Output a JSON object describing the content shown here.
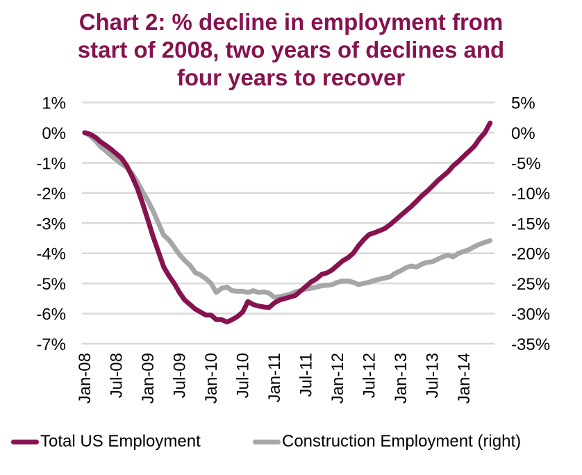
{
  "chart_data": {
    "type": "line",
    "title_lines": [
      "Chart 2: % decline in employment from",
      "start of 2008, two years of declines and",
      "four years to recover"
    ],
    "title": "Chart 2: % decline in employment from start of 2008, two years of declines and four years to recover",
    "x_start": "Jan-08",
    "x_end": "Jun-14",
    "x_frequency": "monthly",
    "x_tick_labels": [
      "Jan-08",
      "Jul-08",
      "Jan-09",
      "Jul-09",
      "Jan-10",
      "Jul-10",
      "Jan-11",
      "Jul-11",
      "Jan-12",
      "Jul-12",
      "Jan-13",
      "Jul-13",
      "Jan-14"
    ],
    "x_tick_every_months": 6,
    "left_axis": {
      "ylim": [
        -7,
        1
      ],
      "ticks": [
        1,
        0,
        -1,
        -2,
        -3,
        -4,
        -5,
        -6,
        -7
      ],
      "tick_labels": [
        "1%",
        "0%",
        "-1%",
        "-2%",
        "-3%",
        "-4%",
        "-5%",
        "-6%",
        "-7%"
      ]
    },
    "right_axis": {
      "ylim": [
        -35,
        5
      ],
      "ticks": [
        5,
        0,
        -5,
        -10,
        -15,
        -20,
        -25,
        -30,
        -35
      ],
      "tick_labels": [
        "5%",
        "0%",
        "-5%",
        "-10%",
        "-15%",
        "-20%",
        "-25%",
        "-30%",
        "-35%"
      ]
    },
    "grid": true,
    "legend_position": "bottom",
    "series": [
      {
        "name": "Total US Employment",
        "axis": "left",
        "color": "#86134F",
        "values": [
          0,
          -0.05,
          -0.15,
          -0.3,
          -0.42,
          -0.55,
          -0.7,
          -0.85,
          -1.1,
          -1.45,
          -1.85,
          -2.35,
          -2.9,
          -3.45,
          -3.95,
          -4.45,
          -4.75,
          -5.0,
          -5.3,
          -5.55,
          -5.7,
          -5.85,
          -5.95,
          -6.05,
          -6.05,
          -6.2,
          -6.2,
          -6.28,
          -6.2,
          -6.1,
          -5.95,
          -5.6,
          -5.7,
          -5.75,
          -5.78,
          -5.8,
          -5.65,
          -5.55,
          -5.5,
          -5.45,
          -5.4,
          -5.25,
          -5.1,
          -4.95,
          -4.85,
          -4.7,
          -4.65,
          -4.55,
          -4.4,
          -4.25,
          -4.15,
          -4.0,
          -3.75,
          -3.55,
          -3.38,
          -3.32,
          -3.25,
          -3.18,
          -3.05,
          -2.9,
          -2.75,
          -2.6,
          -2.45,
          -2.28,
          -2.1,
          -1.95,
          -1.78,
          -1.6,
          -1.45,
          -1.3,
          -1.1,
          -0.95,
          -0.78,
          -0.62,
          -0.45,
          -0.2,
          0.0,
          0.32
        ]
      },
      {
        "name": "Construction Employment (right)",
        "axis": "right",
        "color": "#A6A6A6",
        "values": [
          0,
          -0.5,
          -1.3,
          -2.3,
          -3.0,
          -3.8,
          -4.5,
          -5.2,
          -5.8,
          -6.8,
          -8.2,
          -9.8,
          -11.3,
          -13.0,
          -15.0,
          -17.0,
          -17.8,
          -19.0,
          -20.2,
          -21.2,
          -22.0,
          -23.2,
          -23.6,
          -24.2,
          -25.0,
          -26.5,
          -25.8,
          -25.6,
          -26.2,
          -26.3,
          -26.3,
          -26.5,
          -26.2,
          -26.5,
          -26.4,
          -26.6,
          -27.3,
          -27.2,
          -27.0,
          -26.8,
          -26.4,
          -26.2,
          -25.9,
          -25.8,
          -25.6,
          -25.4,
          -25.3,
          -25.2,
          -24.8,
          -24.6,
          -24.6,
          -24.8,
          -25.2,
          -25.0,
          -24.8,
          -24.5,
          -24.3,
          -24.1,
          -23.9,
          -23.3,
          -22.9,
          -22.4,
          -22.1,
          -22.3,
          -21.8,
          -21.5,
          -21.4,
          -21.0,
          -20.6,
          -20.3,
          -20.6,
          -20.0,
          -19.7,
          -19.4,
          -18.9,
          -18.5,
          -18.2,
          -17.9
        ]
      }
    ],
    "gridline_color": "#D9D9D9"
  },
  "legend": {
    "items": [
      {
        "label": "Total US Employment",
        "color": "#86134F"
      },
      {
        "label": "Construction Employment (right)",
        "color": "#A6A6A6"
      }
    ]
  }
}
